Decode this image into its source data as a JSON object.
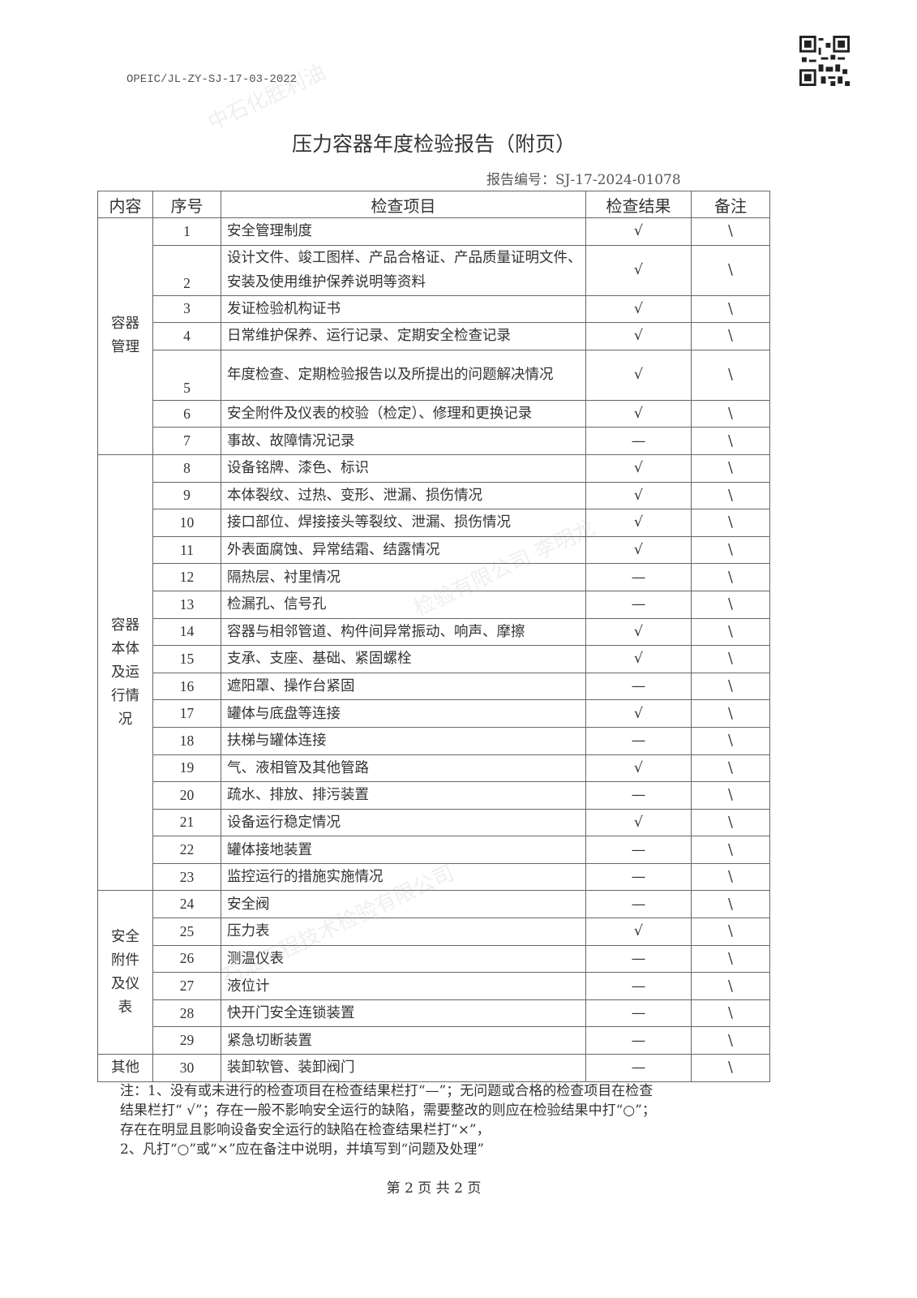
{
  "doc_code": "OPEIC/JL-ZY-SJ-17-03-2022",
  "title": "压力容器年度检验报告（附页）",
  "report_no": "报告编号：SJ-17-2024-01078",
  "headers": [
    "内容",
    "序号",
    "检查项目",
    "检查结果",
    "备注"
  ],
  "groups": [
    {
      "label": "容器\n管理",
      "start": 1,
      "span": 7
    },
    {
      "label": "容器\n本体\n及运\n行情\n况",
      "start": 8,
      "span": 16
    },
    {
      "label": "安全\n附件\n及仪\n表",
      "start": 24,
      "span": 6
    },
    {
      "label": "其他",
      "start": 30,
      "span": 1
    }
  ],
  "rows": [
    {
      "no": "1",
      "item": "安全管理制度",
      "result": "√",
      "remark": "\\"
    },
    {
      "no": "2",
      "item": "设计文件、竣工图样、产品合格证、产品质量证明文件、安装及使用维护保养说明等资料",
      "result": "√",
      "remark": "\\"
    },
    {
      "no": "3",
      "item": "发证检验机构证书",
      "result": "√",
      "remark": "\\"
    },
    {
      "no": "4",
      "item": "日常维护保养、运行记录、定期安全检查记录",
      "result": "√",
      "remark": "\\"
    },
    {
      "no": "5",
      "item": "年度检查、定期检验报告以及所提出的问题解决情况",
      "result": "√",
      "remark": "\\"
    },
    {
      "no": "6",
      "item": "安全附件及仪表的校验（检定）、修理和更换记录",
      "result": "√",
      "remark": "\\"
    },
    {
      "no": "7",
      "item": "事故、故障情况记录",
      "result": "—",
      "remark": "\\"
    },
    {
      "no": "8",
      "item": "设备铭牌、漆色、标识",
      "result": "√",
      "remark": "\\"
    },
    {
      "no": "9",
      "item": "本体裂纹、过热、变形、泄漏、损伤情况",
      "result": "√",
      "remark": "\\"
    },
    {
      "no": "10",
      "item": "接口部位、焊接接头等裂纹、泄漏、损伤情况",
      "result": "√",
      "remark": "\\"
    },
    {
      "no": "11",
      "item": "外表面腐蚀、异常结霜、结露情况",
      "result": "√",
      "remark": "\\"
    },
    {
      "no": "12",
      "item": "隔热层、衬里情况",
      "result": "—",
      "remark": "\\"
    },
    {
      "no": "13",
      "item": "检漏孔、信号孔",
      "result": "—",
      "remark": "\\"
    },
    {
      "no": "14",
      "item": "容器与相邻管道、构件间异常振动、响声、摩擦",
      "result": "√",
      "remark": "\\"
    },
    {
      "no": "15",
      "item": "支承、支座、基础、紧固螺栓",
      "result": "√",
      "remark": "\\"
    },
    {
      "no": "16",
      "item": "遮阳罩、操作台紧固",
      "result": "—",
      "remark": "\\"
    },
    {
      "no": "17",
      "item": "罐体与底盘等连接",
      "result": "√",
      "remark": "\\"
    },
    {
      "no": "18",
      "item": "扶梯与罐体连接",
      "result": "—",
      "remark": "\\"
    },
    {
      "no": "19",
      "item": "气、液相管及其他管路",
      "result": "√",
      "remark": "\\"
    },
    {
      "no": "20",
      "item": "疏水、排放、排污装置",
      "result": "—",
      "remark": "\\"
    },
    {
      "no": "21",
      "item": "设备运行稳定情况",
      "result": "√",
      "remark": "\\"
    },
    {
      "no": "22",
      "item": "罐体接地装置",
      "result": "—",
      "remark": "\\"
    },
    {
      "no": "23",
      "item": "监控运行的措施实施情况",
      "result": "—",
      "remark": "\\"
    },
    {
      "no": "24",
      "item": "安全阀",
      "result": "—",
      "remark": "\\"
    },
    {
      "no": "25",
      "item": "压力表",
      "result": "√",
      "remark": "\\"
    },
    {
      "no": "26",
      "item": "测温仪表",
      "result": "—",
      "remark": "\\"
    },
    {
      "no": "27",
      "item": "液位计",
      "result": "—",
      "remark": "\\"
    },
    {
      "no": "28",
      "item": "快开门安全连锁装置",
      "result": "—",
      "remark": "\\"
    },
    {
      "no": "29",
      "item": "紧急切断装置",
      "result": "—",
      "remark": "\\"
    },
    {
      "no": "30",
      "item": "装卸软管、装卸阀门",
      "result": "—",
      "remark": "\\"
    }
  ],
  "notes": {
    "line1": "注：1、没有或未进行的检查项目在检查结果栏打“—”；无问题或合格的检查项目在检查",
    "line2": "结果栏打“ √”；存在一般不影响安全运行的缺陷，需要整改的则应在检验结果中打“○”；",
    "line3": "存在在明显且影响设备安全运行的缺陷在检查结果栏打“×”，",
    "line4": "2、凡打“○”或“×”应在备注中说明，并填写到“问题及处理”"
  },
  "footer": "第 2 页 共 2 页"
}
